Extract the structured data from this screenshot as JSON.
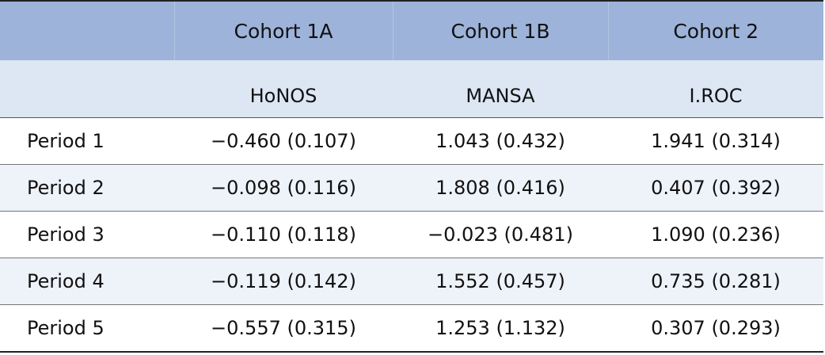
{
  "header": {
    "groups": [
      "",
      "Cohort 1A",
      "Cohort 1B",
      "Cohort 2"
    ],
    "measures": [
      "",
      "HoNOS",
      "MANSA",
      "I.ROC"
    ]
  },
  "rows": [
    {
      "label": "Period 1",
      "values": [
        "−0.460 (0.107)",
        "1.043 (0.432)",
        "1.941 (0.314)"
      ]
    },
    {
      "label": "Period 2",
      "values": [
        "−0.098 (0.116)",
        "1.808 (0.416)",
        "0.407 (0.392)"
      ]
    },
    {
      "label": "Period 3",
      "values": [
        "−0.110 (0.118)",
        "−0.023 (0.481)",
        "1.090 (0.236)"
      ]
    },
    {
      "label": "Period 4",
      "values": [
        "−0.119 (0.142)",
        "1.552 (0.457)",
        "0.735 (0.281)"
      ]
    },
    {
      "label": "Period 5",
      "values": [
        "−0.557 (0.315)",
        "1.253 (1.132)",
        "0.307 (0.293)"
      ]
    }
  ]
}
